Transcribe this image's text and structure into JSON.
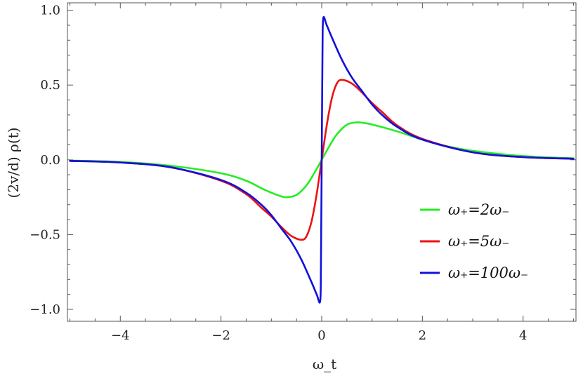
{
  "chart_data": {
    "type": "line",
    "xlabel": "ω_t",
    "ylabel": "(2v/d) ρ(t)",
    "xlim": [
      -5.05,
      5.05
    ],
    "ylim": [
      -1.08,
      1.05
    ],
    "x_ticks": [
      -4,
      -2,
      0,
      2,
      4
    ],
    "x_tick_labels": [
      "−4",
      "−2",
      "0",
      "2",
      "4"
    ],
    "y_ticks": [
      -1.0,
      -0.5,
      0.0,
      0.5,
      1.0
    ],
    "y_tick_labels": [
      "−1.0",
      "−0.5",
      "0.0",
      "0.5",
      "1.0"
    ],
    "grid": false,
    "legend_position": "center-right",
    "series": [
      {
        "name": "ω₊=2ω₋",
        "color": "#22ee22",
        "points": [
          [
            -5,
            -0.005
          ],
          [
            -4,
            -0.014
          ],
          [
            -3,
            -0.04
          ],
          [
            -2,
            -0.09
          ],
          [
            -1.5,
            -0.14
          ],
          [
            -1.2,
            -0.19
          ],
          [
            -1,
            -0.22
          ],
          [
            -0.8,
            -0.245
          ],
          [
            -0.69,
            -0.25
          ],
          [
            -0.5,
            -0.235
          ],
          [
            -0.3,
            -0.17
          ],
          [
            -0.15,
            -0.09
          ],
          [
            0,
            0
          ],
          [
            0.15,
            0.09
          ],
          [
            0.3,
            0.17
          ],
          [
            0.5,
            0.235
          ],
          [
            0.69,
            0.25
          ],
          [
            0.8,
            0.248
          ],
          [
            1,
            0.236
          ],
          [
            1.5,
            0.19
          ],
          [
            2,
            0.135
          ],
          [
            2.5,
            0.09
          ],
          [
            3,
            0.06
          ],
          [
            4,
            0.025
          ],
          [
            5,
            0.01
          ]
        ]
      },
      {
        "name": "ω₊=5ω₋",
        "color": "#ee1111",
        "points": [
          [
            -5,
            -0.007
          ],
          [
            -4,
            -0.018
          ],
          [
            -3,
            -0.05
          ],
          [
            -2,
            -0.14
          ],
          [
            -1.5,
            -0.23
          ],
          [
            -1.2,
            -0.32
          ],
          [
            -1,
            -0.38
          ],
          [
            -0.8,
            -0.45
          ],
          [
            -0.6,
            -0.51
          ],
          [
            -0.4,
            -0.535
          ],
          [
            -0.3,
            -0.51
          ],
          [
            -0.2,
            -0.41
          ],
          [
            -0.1,
            -0.23
          ],
          [
            0,
            0
          ],
          [
            0.1,
            0.23
          ],
          [
            0.2,
            0.41
          ],
          [
            0.3,
            0.51
          ],
          [
            0.4,
            0.535
          ],
          [
            0.6,
            0.51
          ],
          [
            0.8,
            0.45
          ],
          [
            1,
            0.38
          ],
          [
            1.2,
            0.32
          ],
          [
            1.5,
            0.23
          ],
          [
            2,
            0.14
          ],
          [
            3,
            0.05
          ],
          [
            4,
            0.018
          ],
          [
            5,
            0.007
          ]
        ]
      },
      {
        "name": "ω₊=100ω₋",
        "color": "#1111dd",
        "points": [
          [
            -5,
            -0.007
          ],
          [
            -4,
            -0.018
          ],
          [
            -3,
            -0.05
          ],
          [
            -2,
            -0.135
          ],
          [
            -1.5,
            -0.22
          ],
          [
            -1.2,
            -0.3
          ],
          [
            -1,
            -0.37
          ],
          [
            -0.8,
            -0.46
          ],
          [
            -0.6,
            -0.55
          ],
          [
            -0.4,
            -0.67
          ],
          [
            -0.2,
            -0.82
          ],
          [
            -0.1,
            -0.9
          ],
          [
            -0.03,
            -0.945
          ],
          [
            -0.015,
            -0.7
          ],
          [
            0,
            0
          ],
          [
            0.015,
            0.7
          ],
          [
            0.03,
            0.945
          ],
          [
            0.1,
            0.9
          ],
          [
            0.2,
            0.82
          ],
          [
            0.4,
            0.67
          ],
          [
            0.6,
            0.55
          ],
          [
            0.8,
            0.46
          ],
          [
            1,
            0.37
          ],
          [
            1.2,
            0.3
          ],
          [
            1.5,
            0.22
          ],
          [
            2,
            0.135
          ],
          [
            3,
            0.05
          ],
          [
            4,
            0.018
          ],
          [
            5,
            0.007
          ]
        ]
      }
    ]
  }
}
